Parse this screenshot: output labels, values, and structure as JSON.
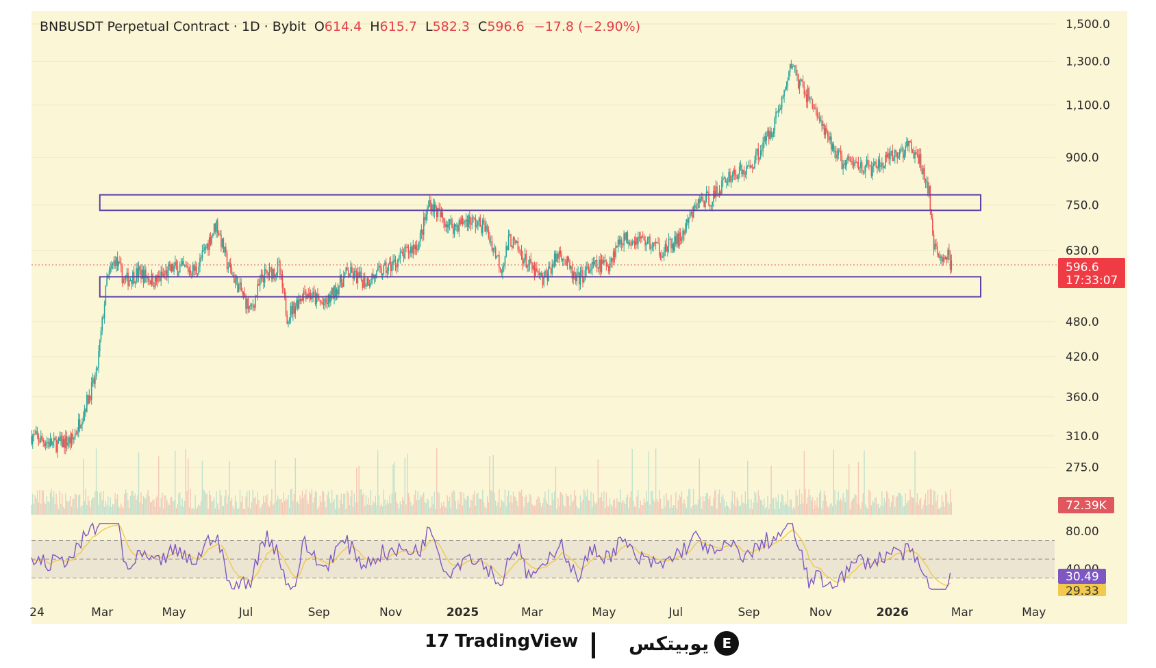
{
  "header": {
    "symbol": "BNBUSDT Perpetual Contract · 1D · Bybit",
    "o_label": "O",
    "o": "614.4",
    "h_label": "H",
    "h": "615.7",
    "l_label": "L",
    "l": "582.3",
    "c_label": "C",
    "c": "596.6",
    "change": "−17.8 (−2.90%)"
  },
  "colors": {
    "background": "#fbf6d6",
    "up": "#26a69a",
    "down": "#ef5350",
    "box": "#5b3fa6",
    "rsi": "#7e57c2",
    "rsi_ma": "#f2c94c",
    "price_tag": "#ef3b44"
  },
  "chart_data": {
    "type": "candlestick",
    "price_axis": {
      "scale": "log",
      "ticks": [
        "1,500.0",
        "1,300.0",
        "1,100.0",
        "900.0",
        "750.0",
        "630.0",
        "480.0",
        "420.0",
        "360.0",
        "310.0",
        "275.0"
      ],
      "tick_values": [
        1500,
        1300,
        1100,
        900,
        750,
        630,
        480,
        420,
        360,
        310,
        275
      ]
    },
    "x_axis": {
      "ticks": [
        "24",
        "Mar",
        "May",
        "Jul",
        "Sep",
        "Nov",
        "2025",
        "Mar",
        "May",
        "Jul",
        "Sep",
        "Nov",
        "2026",
        "Mar",
        "May"
      ],
      "bold": [
        "2025",
        "2026"
      ]
    },
    "path": [
      [
        "2024-01-01",
        310
      ],
      [
        "2024-01-20",
        300
      ],
      [
        "2024-02-05",
        305
      ],
      [
        "2024-02-15",
        345
      ],
      [
        "2024-02-25",
        390
      ],
      [
        "2024-03-05",
        560
      ],
      [
        "2024-03-12",
        610
      ],
      [
        "2024-03-20",
        560
      ],
      [
        "2024-04-01",
        580
      ],
      [
        "2024-04-15",
        560
      ],
      [
        "2024-05-01",
        590
      ],
      [
        "2024-05-20",
        585
      ],
      [
        "2024-06-06",
        700
      ],
      [
        "2024-06-15",
        600
      ],
      [
        "2024-07-05",
        500
      ],
      [
        "2024-07-15",
        570
      ],
      [
        "2024-07-29",
        590
      ],
      [
        "2024-08-05",
        490
      ],
      [
        "2024-08-20",
        540
      ],
      [
        "2024-09-06",
        510
      ],
      [
        "2024-09-25",
        580
      ],
      [
        "2024-10-10",
        560
      ],
      [
        "2024-10-30",
        590
      ],
      [
        "2024-11-12",
        620
      ],
      [
        "2024-11-25",
        650
      ],
      [
        "2024-12-04",
        760
      ],
      [
        "2024-12-15",
        710
      ],
      [
        "2024-12-25",
        690
      ],
      [
        "2025-01-05",
        710
      ],
      [
        "2025-01-20",
        690
      ],
      [
        "2025-02-03",
        590
      ],
      [
        "2025-02-10",
        660
      ],
      [
        "2025-02-25",
        600
      ],
      [
        "2025-03-10",
        560
      ],
      [
        "2025-03-25",
        630
      ],
      [
        "2025-04-07",
        560
      ],
      [
        "2025-04-20",
        590
      ],
      [
        "2025-05-05",
        600
      ],
      [
        "2025-05-15",
        660
      ],
      [
        "2025-06-01",
        660
      ],
      [
        "2025-06-20",
        630
      ],
      [
        "2025-07-05",
        660
      ],
      [
        "2025-07-20",
        760
      ],
      [
        "2025-08-01",
        770
      ],
      [
        "2025-08-15",
        840
      ],
      [
        "2025-09-01",
        860
      ],
      [
        "2025-09-20",
        1000
      ],
      [
        "2025-10-01",
        1150
      ],
      [
        "2025-10-08",
        1300
      ],
      [
        "2025-10-13",
        1200
      ],
      [
        "2025-10-25",
        1110
      ],
      [
        "2025-11-05",
        980
      ],
      [
        "2025-11-20",
        880
      ],
      [
        "2025-12-01",
        880
      ],
      [
        "2025-12-15",
        860
      ],
      [
        "2026-01-05",
        910
      ],
      [
        "2026-01-15",
        940
      ],
      [
        "2026-01-25",
        880
      ],
      [
        "2026-02-01",
        790
      ],
      [
        "2026-02-05",
        630
      ],
      [
        "2026-02-10",
        620
      ],
      [
        "2026-02-17",
        615
      ],
      [
        "2026-02-20",
        597
      ]
    ],
    "ranges": [
      {
        "low": 735,
        "high": 780
      },
      {
        "low": 528,
        "high": 570
      }
    ],
    "current_price_tag": "596.6",
    "countdown": "17:33:07",
    "volume_tag": "72.39K",
    "rsi": {
      "ticks": [
        "80.00",
        "40.00"
      ],
      "upper": 70,
      "middle": 50,
      "lower": 30,
      "value_tag": "30.49",
      "ma_tag": "29.33"
    }
  },
  "footer": {
    "tradingview": "TradingView",
    "tv_mark": "17",
    "ubitex": "یوبیتکس",
    "ubitex_mark": "E"
  }
}
